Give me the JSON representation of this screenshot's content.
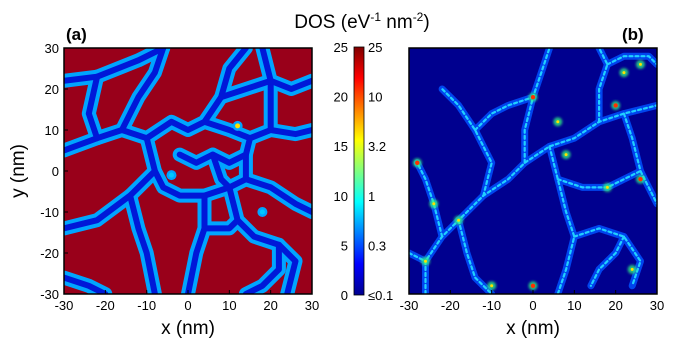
{
  "title": {
    "prefix": "DOS (eV",
    "sup1": "-1",
    "mid": " nm",
    "sup2": "-2",
    "suffix": ")"
  },
  "panels": [
    {
      "label": "(a)",
      "xlabel": "x (nm)",
      "ylabel": "y (nm)"
    },
    {
      "label": "(b)",
      "xlabel": "x (nm)",
      "ylabel": ""
    }
  ],
  "colors": {
    "low": "#00008f",
    "mid": "#00ffff",
    "mid2": "#ffff00",
    "high": "#800000"
  },
  "chart_data": [
    {
      "type": "heatmap",
      "panel": "(a)",
      "xlabel": "x (nm)",
      "ylabel": "y (nm)",
      "xlim": [
        -30,
        30
      ],
      "ylim": [
        -30,
        30
      ],
      "xticks": [
        "-30",
        "-20",
        "-10",
        "0",
        "10",
        "20",
        "30"
      ],
      "yticks": [
        "30",
        "20",
        "10",
        "0",
        "-10",
        "-20",
        "-30"
      ],
      "colorscale": "jet",
      "saturation": "mostly saturated at 25 inside cells, low along network boundaries"
    },
    {
      "type": "heatmap",
      "panel": "(b)",
      "xlabel": "x (nm)",
      "ylabel": "",
      "xlim": [
        -30,
        30
      ],
      "ylim": [
        -30,
        30
      ],
      "xticks": [
        "-30",
        "-20",
        "-10",
        "0",
        "10",
        "20",
        "30"
      ],
      "colorscale": "jet",
      "saturation": "low background, bright spots along network boundaries"
    },
    {
      "type": "colorbar",
      "left_ticks": [
        "25",
        "20",
        "15",
        "10",
        "5",
        "0"
      ],
      "right_ticks": [
        "25",
        "10",
        "3.2",
        "1",
        "0.3",
        "≤0.1"
      ]
    }
  ]
}
